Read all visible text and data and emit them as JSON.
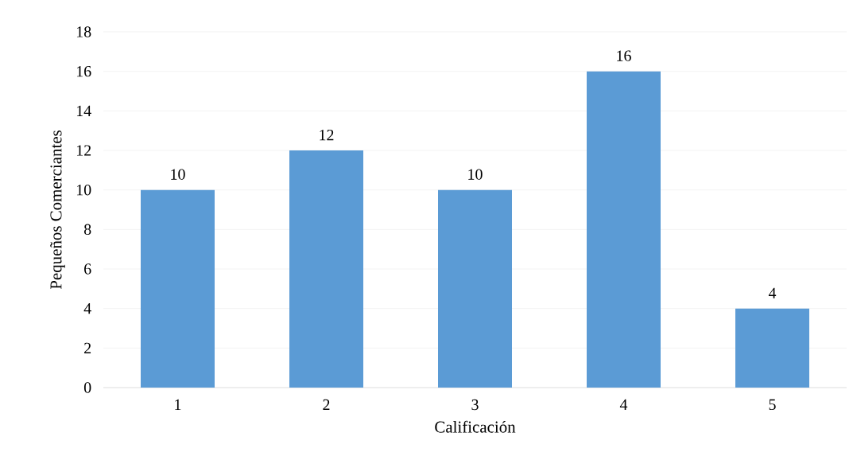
{
  "chart_data": {
    "type": "bar",
    "xlabel": "Calificación",
    "ylabel": "Pequeños Comerciantes",
    "categories": [
      "1",
      "2",
      "3",
      "4",
      "5"
    ],
    "values": [
      10,
      12,
      10,
      16,
      4
    ],
    "color": "#5b9bd5",
    "ylim": [
      0,
      18
    ],
    "yticks": [
      0,
      2,
      4,
      6,
      8,
      10,
      12,
      14,
      16,
      18
    ],
    "grid": "y",
    "data_labels": true
  }
}
